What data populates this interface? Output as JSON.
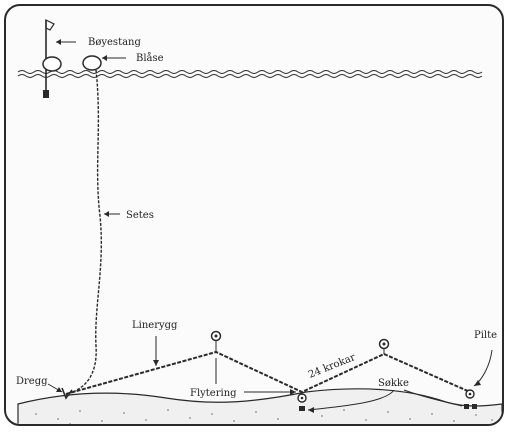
{
  "labels": {
    "boyestang": "Bøyestang",
    "blase": "Blåse",
    "setes": "Setes",
    "liverygg": "Linerygg",
    "kroker": "24 krokar",
    "flytering": "Flytering",
    "dregg": "Dregg",
    "sokke": "Søkke",
    "pilte": "Pilte"
  },
  "colors": {
    "line": "#2a2a2a",
    "seabed_fill": "#f0f0f0",
    "dots": "#8a8a8a"
  }
}
